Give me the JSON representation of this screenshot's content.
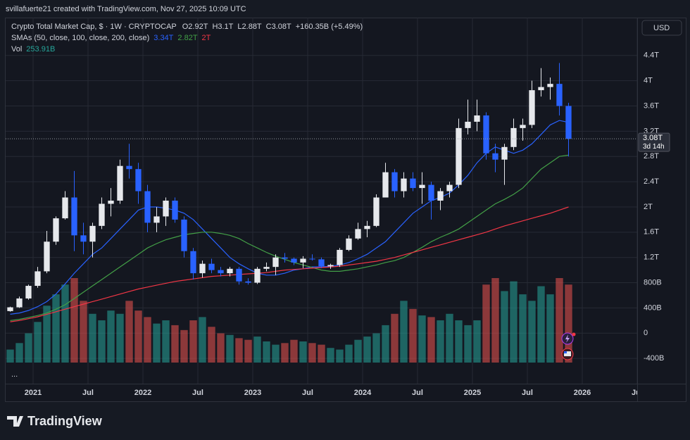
{
  "header": {
    "credit": "svillafuerte21 created with TradingView.com, Nov 27, 2025 10:09 UTC"
  },
  "chart_data": {
    "type": "candlestick",
    "title": "Crypto Total Market Cap, $ · 1W · CRYPTOCAP",
    "ohlc_readout": [
      "O2.92T",
      "H3.1T",
      "L2.88T",
      "C3.08T",
      "+160.35B (+5.49%)"
    ],
    "x": [
      "2020-10",
      "2020-11",
      "2020-12",
      "2021-01",
      "2021-02",
      "2021-03",
      "2021-04",
      "2021-05",
      "2021-06",
      "2021-07",
      "2021-08",
      "2021-09",
      "2021-10",
      "2021-11",
      "2021-12",
      "2022-01",
      "2022-02",
      "2022-03",
      "2022-04",
      "2022-05",
      "2022-06",
      "2022-07",
      "2022-08",
      "2022-09",
      "2022-10",
      "2022-11",
      "2022-12",
      "2023-01",
      "2023-02",
      "2023-03",
      "2023-04",
      "2023-05",
      "2023-06",
      "2023-07",
      "2023-08",
      "2023-09",
      "2023-10",
      "2023-11",
      "2023-12",
      "2024-01",
      "2024-02",
      "2024-03",
      "2024-04",
      "2024-05",
      "2024-06",
      "2024-07",
      "2024-08",
      "2024-09",
      "2024-10",
      "2024-11",
      "2024-12",
      "2025-01",
      "2025-02",
      "2025-03",
      "2025-04",
      "2025-05",
      "2025-06",
      "2025-07",
      "2025-08",
      "2025-09",
      "2025-10",
      "2025-11"
    ],
    "open": [
      0.35,
      0.41,
      0.55,
      0.75,
      0.98,
      1.45,
      1.82,
      2.15,
      1.55,
      1.45,
      1.7,
      2.05,
      2.1,
      2.65,
      2.6,
      2.25,
      1.75,
      1.85,
      2.1,
      1.8,
      1.3,
      0.95,
      1.1,
      1.0,
      0.95,
      1.02,
      0.82,
      0.8,
      1.02,
      1.05,
      1.2,
      1.18,
      1.12,
      1.18,
      1.17,
      1.06,
      1.08,
      1.32,
      1.5,
      1.65,
      1.7,
      2.15,
      2.55,
      2.25,
      2.45,
      2.3,
      2.35,
      2.1,
      2.25,
      2.35,
      3.25,
      3.35,
      3.45,
      2.85,
      2.75,
      2.95,
      3.25,
      3.3,
      3.85,
      3.9,
      3.95,
      3.6
    ],
    "high": [
      0.42,
      0.58,
      0.77,
      1.05,
      1.62,
      1.85,
      2.25,
      2.57,
      1.75,
      1.75,
      2.15,
      2.3,
      2.75,
      3.0,
      2.7,
      2.35,
      2.0,
      2.15,
      2.15,
      1.85,
      1.35,
      1.15,
      1.18,
      1.05,
      1.05,
      1.05,
      0.87,
      1.05,
      1.12,
      1.25,
      1.27,
      1.2,
      1.22,
      1.25,
      1.2,
      1.1,
      1.35,
      1.55,
      1.75,
      1.78,
      2.2,
      2.7,
      2.6,
      2.55,
      2.55,
      2.55,
      2.4,
      2.3,
      2.4,
      3.4,
      3.7,
      3.7,
      3.5,
      3.0,
      3.0,
      3.4,
      3.4,
      4.0,
      4.2,
      4.05,
      4.28,
      3.65
    ],
    "low": [
      0.34,
      0.4,
      0.53,
      0.72,
      0.95,
      1.4,
      1.8,
      1.3,
      1.25,
      1.2,
      1.65,
      1.85,
      2.05,
      2.45,
      2.05,
      1.6,
      1.6,
      1.7,
      1.75,
      1.2,
      0.85,
      0.88,
      0.95,
      0.9,
      0.9,
      0.77,
      0.77,
      0.78,
      0.98,
      0.92,
      1.12,
      1.08,
      1.03,
      1.15,
      1.03,
      1.02,
      1.05,
      1.3,
      1.48,
      1.52,
      1.68,
      2.15,
      2.15,
      2.15,
      2.25,
      2.05,
      1.8,
      1.95,
      2.15,
      2.3,
      3.15,
      3.2,
      2.75,
      2.55,
      2.35,
      2.9,
      3.05,
      3.25,
      3.75,
      3.7,
      3.45,
      2.8
    ],
    "close": [
      0.41,
      0.55,
      0.75,
      0.98,
      1.45,
      1.82,
      2.15,
      1.55,
      1.45,
      1.7,
      2.05,
      2.1,
      2.65,
      2.6,
      2.25,
      1.75,
      1.85,
      2.1,
      1.8,
      1.3,
      0.95,
      1.1,
      1.0,
      0.95,
      1.02,
      0.82,
      0.8,
      1.02,
      1.05,
      1.2,
      1.18,
      1.12,
      1.18,
      1.17,
      1.06,
      1.08,
      1.32,
      1.5,
      1.65,
      1.7,
      2.15,
      2.55,
      2.25,
      2.45,
      2.3,
      2.35,
      2.1,
      2.25,
      2.35,
      3.25,
      3.35,
      3.45,
      2.85,
      2.75,
      2.95,
      3.25,
      3.3,
      3.85,
      3.9,
      3.95,
      3.6,
      3.08
    ],
    "up_color": "#e6e8ec",
    "down_color": "#2962ff",
    "sma_title": "SMAs (50, close, 100, close, 200, close)",
    "sma": [
      {
        "label": "3.34T",
        "color": "#2962ff",
        "values": [
          0.3,
          0.32,
          0.36,
          0.42,
          0.5,
          0.62,
          0.78,
          0.95,
          1.1,
          1.25,
          1.35,
          1.5,
          1.65,
          1.8,
          1.95,
          2.0,
          2.0,
          1.98,
          1.95,
          1.9,
          1.8,
          1.65,
          1.5,
          1.35,
          1.2,
          1.1,
          1.02,
          0.95,
          0.92,
          0.92,
          0.95,
          1.0,
          1.02,
          1.05,
          1.05,
          1.06,
          1.08,
          1.12,
          1.18,
          1.25,
          1.35,
          1.45,
          1.6,
          1.75,
          1.9,
          2.0,
          2.1,
          2.15,
          2.22,
          2.35,
          2.5,
          2.7,
          2.85,
          2.95,
          2.9,
          2.85,
          2.9,
          3.0,
          3.15,
          3.3,
          3.37,
          3.34
        ]
      },
      {
        "label": "2.82T",
        "color": "#43a047",
        "values": [
          0.2,
          0.22,
          0.25,
          0.28,
          0.32,
          0.38,
          0.45,
          0.55,
          0.65,
          0.75,
          0.85,
          0.95,
          1.05,
          1.15,
          1.25,
          1.35,
          1.42,
          1.48,
          1.52,
          1.56,
          1.58,
          1.6,
          1.6,
          1.58,
          1.55,
          1.5,
          1.42,
          1.35,
          1.28,
          1.22,
          1.17,
          1.12,
          1.08,
          1.04,
          1.0,
          0.98,
          0.98,
          1.0,
          1.02,
          1.05,
          1.08,
          1.12,
          1.15,
          1.2,
          1.28,
          1.36,
          1.45,
          1.52,
          1.58,
          1.65,
          1.75,
          1.85,
          1.95,
          2.05,
          2.12,
          2.2,
          2.3,
          2.45,
          2.6,
          2.7,
          2.8,
          2.82
        ]
      },
      {
        "label": "2T",
        "color": "#f23645",
        "values": [
          0.18,
          0.2,
          0.23,
          0.26,
          0.3,
          0.34,
          0.38,
          0.42,
          0.46,
          0.5,
          0.54,
          0.58,
          0.62,
          0.66,
          0.7,
          0.73,
          0.76,
          0.79,
          0.82,
          0.84,
          0.86,
          0.88,
          0.9,
          0.91,
          0.92,
          0.93,
          0.94,
          0.95,
          0.96,
          0.98,
          1.0,
          1.01,
          1.02,
          1.03,
          1.04,
          1.05,
          1.06,
          1.08,
          1.1,
          1.12,
          1.14,
          1.17,
          1.2,
          1.24,
          1.28,
          1.32,
          1.36,
          1.4,
          1.44,
          1.48,
          1.52,
          1.56,
          1.6,
          1.65,
          1.7,
          1.74,
          1.78,
          1.82,
          1.86,
          1.9,
          1.95,
          2.0
        ]
      }
    ],
    "volume_title": "Vol",
    "volume_label": "253.91B",
    "volume": [
      80,
      120,
      180,
      250,
      350,
      420,
      480,
      520,
      380,
      300,
      260,
      320,
      300,
      380,
      320,
      280,
      240,
      260,
      230,
      200,
      260,
      280,
      220,
      180,
      170,
      150,
      140,
      160,
      130,
      110,
      120,
      140,
      130,
      120,
      110,
      90,
      80,
      110,
      140,
      160,
      180,
      230,
      300,
      380,
      330,
      290,
      280,
      260,
      300,
      260,
      230,
      260,
      480,
      520,
      440,
      500,
      420,
      380,
      470,
      420,
      520,
      480
    ],
    "volume_up_color": "rgba(38,166,154,0.55)",
    "volume_down_color": "rgba(239,83,80,0.55)",
    "ylim": [
      -0.8,
      5.0
    ],
    "yticks": [
      {
        "value": 4.4,
        "label": "4.4T"
      },
      {
        "value": 4,
        "label": "4T"
      },
      {
        "value": 3.6,
        "label": "3.6T"
      },
      {
        "value": 3.2,
        "label": "3.2T"
      },
      {
        "value": 2.8,
        "label": "2.8T"
      },
      {
        "value": 2.4,
        "label": "2.4T"
      },
      {
        "value": 2,
        "label": "2T"
      },
      {
        "value": 1.6,
        "label": "1.6T"
      },
      {
        "value": 1.2,
        "label": "1.2T"
      },
      {
        "value": 0.8,
        "label": "800B"
      },
      {
        "value": 0.4,
        "label": "400B"
      },
      0,
      {
        "value": -0.4,
        "label": "-400B"
      }
    ],
    "xlim": [
      "2020-10",
      "2026-07"
    ],
    "xticks": [
      {
        "value": "2021-01",
        "label": "2021"
      },
      {
        "value": "2021-07",
        "label": "Jul"
      },
      {
        "value": "2022-01",
        "label": "2022"
      },
      {
        "value": "2022-07",
        "label": "Jul"
      },
      {
        "value": "2023-01",
        "label": "2023"
      },
      {
        "value": "2023-07",
        "label": "Jul"
      },
      {
        "value": "2024-01",
        "label": "2024"
      },
      {
        "value": "2024-07",
        "label": "Jul"
      },
      {
        "value": "2025-01",
        "label": "2025"
      },
      {
        "value": "2025-07",
        "label": "Jul"
      },
      {
        "value": "2026-01",
        "label": "2026"
      },
      {
        "value": "2026-07",
        "label": "Jul"
      }
    ],
    "grid": true,
    "currency": "USD",
    "last_price_label": "3.08T",
    "countdown": "3d 14h"
  },
  "footer": {
    "more": "...",
    "brand": "TradingView"
  }
}
